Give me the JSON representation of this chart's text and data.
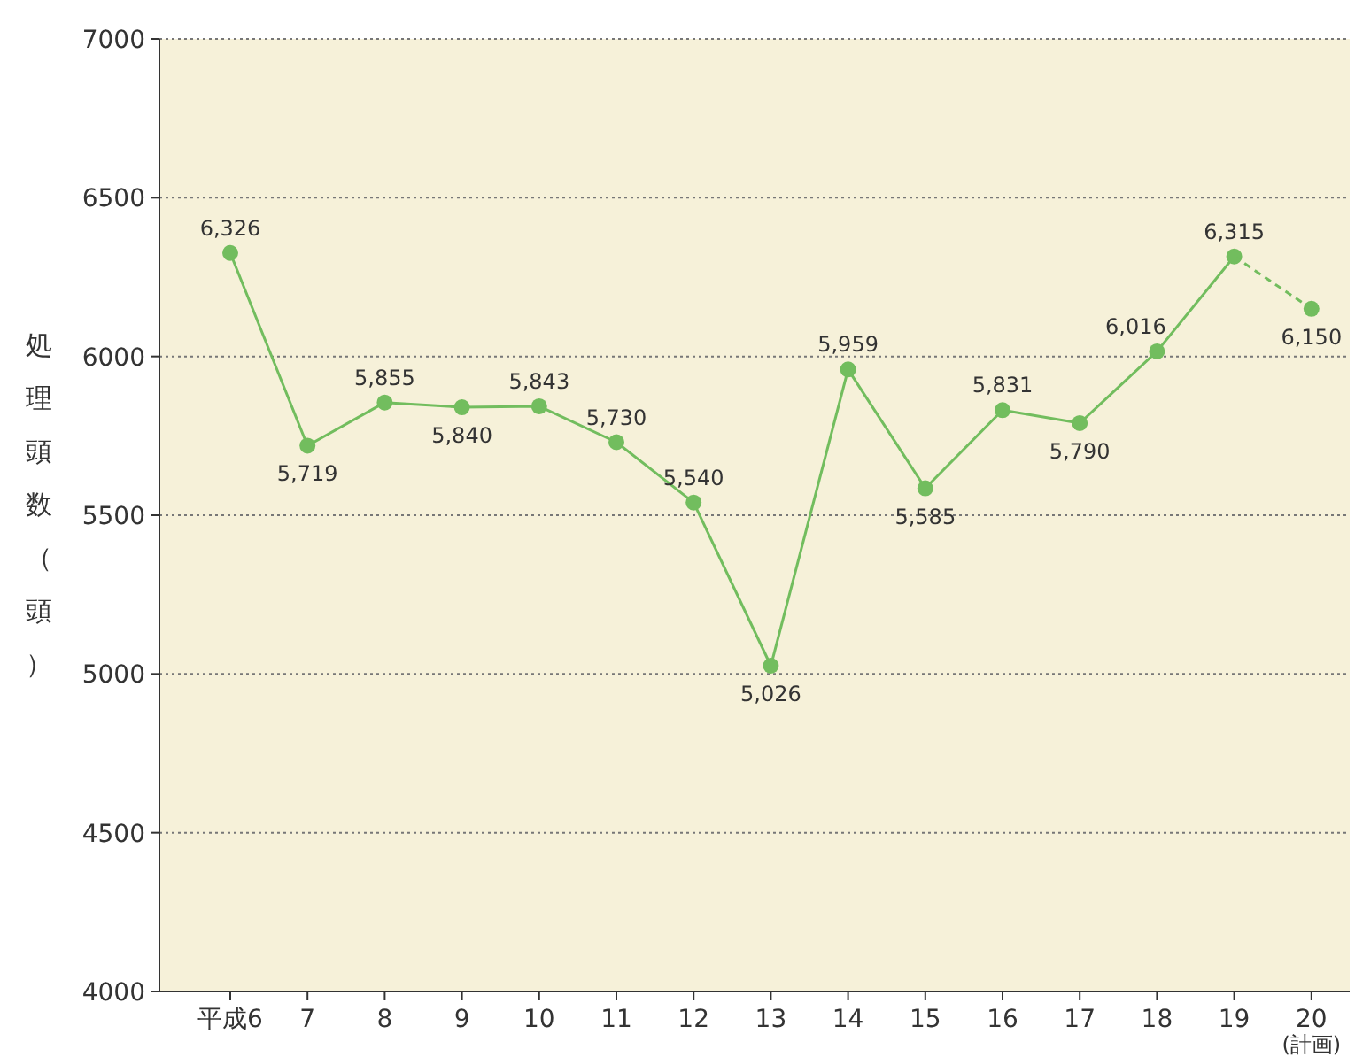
{
  "chart_data": {
    "type": "line",
    "ylabel": "処理頭数（頭）",
    "categories": [
      "平成6",
      "7",
      "8",
      "9",
      "10",
      "11",
      "12",
      "13",
      "14",
      "15",
      "16",
      "17",
      "18",
      "19",
      "20 (計画)"
    ],
    "series": [
      {
        "color": "#72bd5e",
        "line_style": "solid",
        "values": [
          6326,
          5719,
          5855,
          5840,
          5843,
          5730,
          5540,
          5026,
          5959,
          5585,
          5831,
          5790,
          6016,
          6315,
          null
        ],
        "value_labels": [
          "6,326",
          "5,719",
          "5,855",
          "5,840",
          "5,843",
          "5,730",
          "5,540",
          "5,026",
          "5,959",
          "5,585",
          "5,831",
          "5,790",
          "6,016",
          "6,315",
          null
        ]
      },
      {
        "color": "#72bd5e",
        "line_style": "dashed",
        "values": [
          null,
          null,
          null,
          null,
          null,
          null,
          null,
          null,
          null,
          null,
          null,
          null,
          null,
          6315,
          6150
        ],
        "value_labels": [
          null,
          null,
          null,
          null,
          null,
          null,
          null,
          null,
          null,
          null,
          null,
          null,
          null,
          null,
          "6,150"
        ]
      }
    ],
    "ylim": [
      4000,
      7000
    ],
    "yticks": [
      4000,
      4500,
      5000,
      5500,
      6000,
      6500,
      7000
    ],
    "grid": "y",
    "marker": "circle"
  }
}
